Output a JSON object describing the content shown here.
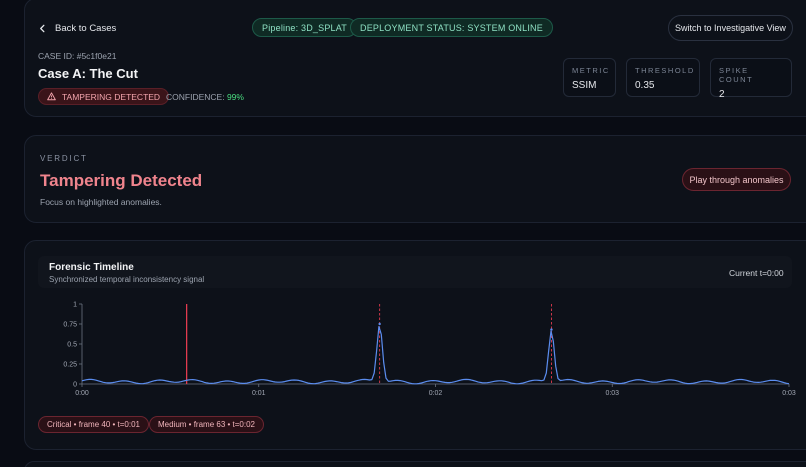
{
  "header": {
    "back_label": "Back to Cases",
    "pipeline": "Pipeline: 3D_SPLAT",
    "deployment_status": "DEPLOYMENT STATUS: SYSTEM ONLINE",
    "switch_view_label": "Switch to Investigative View",
    "case_id": "CASE ID: #5c1f0e21",
    "case_title": "Case A: The Cut",
    "tamper_badge": "TAMPERING DETECTED",
    "confidence_label": "CONFIDENCE:",
    "confidence_value": "99%",
    "metrics": [
      {
        "label": "METRIC",
        "value": "SSIM"
      },
      {
        "label": "THRESHOLD",
        "value": "0.35"
      },
      {
        "label": "SPIKE COUNT",
        "value": "2"
      }
    ]
  },
  "verdict": {
    "label": "VERDICT",
    "title": "Tampering Detected",
    "subtitle": "Focus on highlighted anomalies.",
    "play_label": "Play through anomalies"
  },
  "timeline": {
    "title": "Forensic Timeline",
    "subtitle": "Synchronized temporal inconsistency signal",
    "current": "Current t=0:00",
    "events": [
      {
        "label": "Critical • frame 40 • t=0:01"
      },
      {
        "label": "Medium • frame 63 • t=0:02"
      }
    ]
  },
  "colors": {
    "accent_red": "#f0848d",
    "line_blue": "#5b8def",
    "status_green": "#4ade80",
    "playhead": "#e23b4f"
  },
  "chart_data": {
    "type": "line",
    "y_ticks": [
      "0",
      "0.25",
      "0.5",
      "0.75",
      "1"
    ],
    "x_ticks": [
      "0:00",
      "0:01",
      "0:02",
      "0:03",
      "0:03"
    ],
    "ylim": [
      0,
      1
    ],
    "playhead_frac": 0.148,
    "spikes": [
      {
        "x_frac": 0.421,
        "value": 0.75
      },
      {
        "x_frac": 0.664,
        "value": 0.68
      }
    ],
    "baseline": 0.03
  }
}
